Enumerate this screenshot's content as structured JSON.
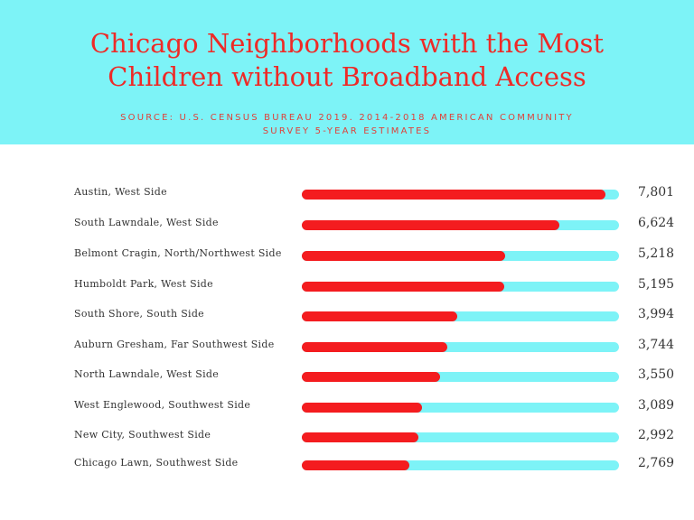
{
  "colors": {
    "header_bg": "#7df3f7",
    "title": "#ee2a27",
    "bar_fill": "#f41c1f",
    "bar_track": "#7df3f7"
  },
  "header": {
    "title_line1": "Chicago Neighborhoods with the Most",
    "title_line2": "Children without Broadband Access",
    "source_line1": "SOURCE: U.S. CENSUS BUREAU 2019. 2014-2018 AMERICAN COMMUNITY",
    "source_line2": "SURVEY 5-YEAR ESTIMATES"
  },
  "chart_data": {
    "type": "bar",
    "orientation": "horizontal",
    "title": "Chicago Neighborhoods with the Most Children without Broadband Access",
    "categories": [
      "Austin, West Side",
      "South Lawndale, West Side",
      "Belmont Cragin, North/Northwest Side",
      "Humboldt Park, West Side",
      "South Shore, South Side",
      "Auburn Gresham, Far Southwest Side",
      "North Lawndale, West Side",
      "West Englewood, Southwest Side",
      "New City, Southwest Side",
      "Chicago Lawn, Southwest Side"
    ],
    "values": [
      7801,
      6624,
      5218,
      5195,
      3994,
      3744,
      3550,
      3089,
      2992,
      2769
    ],
    "value_labels": [
      "7,801",
      "6,624",
      "5,218",
      "5,195",
      "3,994",
      "3,744",
      "3,550",
      "3,089",
      "2,992",
      "2,769"
    ],
    "xlim": [
      0,
      8150
    ],
    "grid": false
  }
}
